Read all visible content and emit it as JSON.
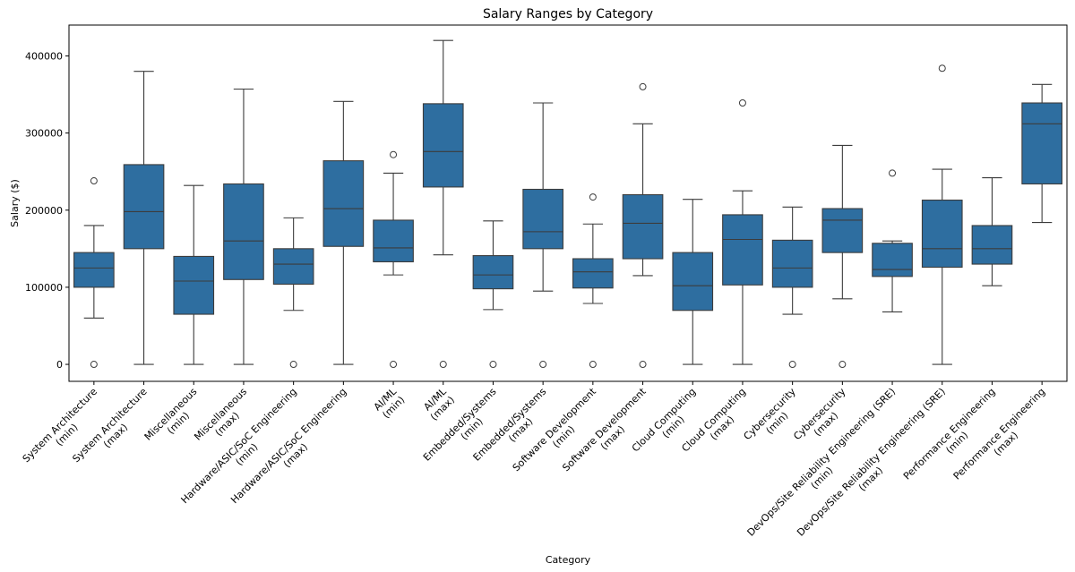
{
  "chart_data": {
    "type": "box",
    "title": "Salary Ranges by Category",
    "xlabel": "Category",
    "ylabel": "Salary ($)",
    "ylim": [
      -22000,
      440000
    ],
    "yticks": [
      0,
      100000,
      200000,
      300000,
      400000
    ],
    "ytick_labels": [
      "0",
      "100000",
      "200000",
      "300000",
      "400000"
    ],
    "box_color": "#2e6ea0",
    "line_color": "#3c3c3c",
    "boxes": [
      {
        "label": [
          "System Architecture",
          "(min)"
        ],
        "whislo": 60000,
        "q1": 100000,
        "med": 125000,
        "q3": 145000,
        "whishi": 180000,
        "fliers": [
          0,
          238000
        ]
      },
      {
        "label": [
          "System Architecture",
          "(max)"
        ],
        "whislo": 0,
        "q1": 150000,
        "med": 198000,
        "q3": 259000,
        "whishi": 380000,
        "fliers": []
      },
      {
        "label": [
          "Miscellaneous",
          "(min)"
        ],
        "whislo": 0,
        "q1": 65000,
        "med": 108000,
        "q3": 140000,
        "whishi": 232000,
        "fliers": []
      },
      {
        "label": [
          "Miscellaneous",
          "(max)"
        ],
        "whislo": 0,
        "q1": 110000,
        "med": 160000,
        "q3": 234000,
        "whishi": 357000,
        "fliers": []
      },
      {
        "label": [
          "Hardware/ASIC/SoC Engineering",
          "(min)"
        ],
        "whislo": 70000,
        "q1": 104000,
        "med": 130000,
        "q3": 150000,
        "whishi": 190000,
        "fliers": [
          0
        ]
      },
      {
        "label": [
          "Hardware/ASIC/SoC Engineering",
          "(max)"
        ],
        "whislo": 0,
        "q1": 153000,
        "med": 202000,
        "q3": 264000,
        "whishi": 341000,
        "fliers": []
      },
      {
        "label": [
          "AI/ML",
          "(min)"
        ],
        "whislo": 116000,
        "q1": 133000,
        "med": 151000,
        "q3": 187000,
        "whishi": 248000,
        "fliers": [
          0,
          272000
        ]
      },
      {
        "label": [
          "AI/ML",
          "(max)"
        ],
        "whislo": 142000,
        "q1": 230000,
        "med": 276000,
        "q3": 338000,
        "whishi": 420000,
        "fliers": [
          0
        ]
      },
      {
        "label": [
          "Embedded/Systems",
          "(min)"
        ],
        "whislo": 71000,
        "q1": 98000,
        "med": 116000,
        "q3": 141000,
        "whishi": 186000,
        "fliers": [
          0
        ]
      },
      {
        "label": [
          "Embedded/Systems",
          "(max)"
        ],
        "whislo": 95000,
        "q1": 150000,
        "med": 172000,
        "q3": 227000,
        "whishi": 339000,
        "fliers": [
          0
        ]
      },
      {
        "label": [
          "Software Development",
          "(min)"
        ],
        "whislo": 79000,
        "q1": 99000,
        "med": 120000,
        "q3": 137000,
        "whishi": 182000,
        "fliers": [
          0,
          217000
        ]
      },
      {
        "label": [
          "Software Development",
          "(max)"
        ],
        "whislo": 115000,
        "q1": 137000,
        "med": 183000,
        "q3": 220000,
        "whishi": 312000,
        "fliers": [
          0,
          360000
        ]
      },
      {
        "label": [
          "Cloud Computing",
          "(min)"
        ],
        "whislo": 0,
        "q1": 70000,
        "med": 102000,
        "q3": 145000,
        "whishi": 214000,
        "fliers": []
      },
      {
        "label": [
          "Cloud Computing",
          "(max)"
        ],
        "whislo": 0,
        "q1": 103000,
        "med": 162000,
        "q3": 194000,
        "whishi": 225000,
        "fliers": [
          339000
        ]
      },
      {
        "label": [
          "Cybersecurity",
          "(min)"
        ],
        "whislo": 65000,
        "q1": 100000,
        "med": 125000,
        "q3": 161000,
        "whishi": 204000,
        "fliers": [
          0
        ]
      },
      {
        "label": [
          "Cybersecurity",
          "(max)"
        ],
        "whislo": 85000,
        "q1": 145000,
        "med": 187000,
        "q3": 202000,
        "whishi": 284000,
        "fliers": [
          0
        ]
      },
      {
        "label": [
          "DevOps/Site Reliability Engineering (SRE)",
          "(min)"
        ],
        "whislo": 68000,
        "q1": 114000,
        "med": 123000,
        "q3": 157000,
        "whishi": 160000,
        "fliers": [
          248000
        ]
      },
      {
        "label": [
          "DevOps/Site Reliability Engineering (SRE)",
          "(max)"
        ],
        "whislo": 0,
        "q1": 126000,
        "med": 150000,
        "q3": 213000,
        "whishi": 253000,
        "fliers": [
          384000
        ]
      },
      {
        "label": [
          "Performance Engineering",
          "(min)"
        ],
        "whislo": 102000,
        "q1": 130000,
        "med": 150000,
        "q3": 180000,
        "whishi": 242000,
        "fliers": []
      },
      {
        "label": [
          "Performance Engineering",
          "(max)"
        ],
        "whislo": 184000,
        "q1": 234000,
        "med": 312000,
        "q3": 339000,
        "whishi": 363000,
        "fliers": []
      }
    ]
  }
}
